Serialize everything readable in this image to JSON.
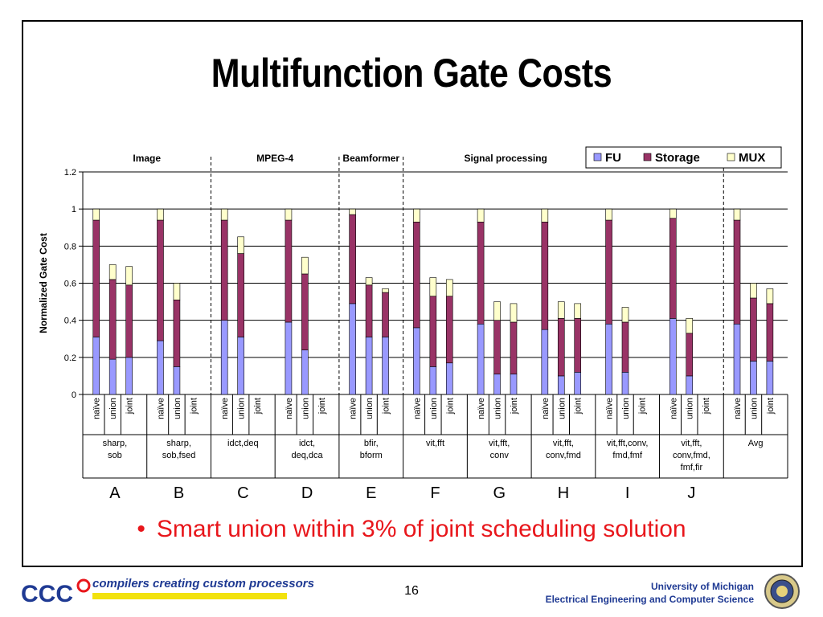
{
  "slide": {
    "title": "Multifunction Gate Costs",
    "bullet_marker": "•",
    "bullet": "Smart union within 3% of joint scheduling solution",
    "page_number": "16",
    "footer_left_logo": "CCC",
    "footer_left_text": "compilers creating custom processors",
    "footer_right_line1": "University of Michigan",
    "footer_right_line2": "Electrical Engineering and Computer Science"
  },
  "chart_data": {
    "type": "bar",
    "stacked": true,
    "ylabel": "Normalized Gate Cost",
    "ylim": [
      0,
      1.2
    ],
    "yticks": [
      "0",
      "0.2",
      "0.4",
      "0.6",
      "0.8",
      "1",
      "1.2"
    ],
    "grid": true,
    "legend_position": "top-right",
    "section_labels": [
      "Image",
      "MPEG-4",
      "Beamformer",
      "Signal processing"
    ],
    "colors": {
      "FU": "#9999ff",
      "Storage": "#993366",
      "MUX": "#ffffcc"
    },
    "series_names": [
      "FU",
      "Storage",
      "MUX"
    ],
    "groups": [
      {
        "letter": "A",
        "benchmark": [
          "sharp,",
          "sob"
        ],
        "bars": [
          {
            "label": "naïve",
            "FU": 0.31,
            "Storage": 0.63,
            "MUX": 0.06
          },
          {
            "label": "union",
            "FU": 0.19,
            "Storage": 0.43,
            "MUX": 0.08
          },
          {
            "label": "joint",
            "FU": 0.2,
            "Storage": 0.39,
            "MUX": 0.1
          }
        ]
      },
      {
        "letter": "B",
        "benchmark": [
          "sharp,",
          "sob,fsed"
        ],
        "bars": [
          {
            "label": "naïve",
            "FU": 0.29,
            "Storage": 0.65,
            "MUX": 0.06
          },
          {
            "label": "union",
            "FU": 0.15,
            "Storage": 0.36,
            "MUX": 0.09
          },
          {
            "label": "joint",
            "FU": 0,
            "Storage": 0,
            "MUX": 0
          }
        ]
      },
      {
        "letter": "C",
        "benchmark": [
          "idct,deq"
        ],
        "bars": [
          {
            "label": "naïve",
            "FU": 0.4,
            "Storage": 0.54,
            "MUX": 0.06
          },
          {
            "label": "union",
            "FU": 0.31,
            "Storage": 0.45,
            "MUX": 0.09
          },
          {
            "label": "joint",
            "FU": 0,
            "Storage": 0,
            "MUX": 0
          }
        ]
      },
      {
        "letter": "D",
        "benchmark": [
          "idct,",
          "deq,dca"
        ],
        "bars": [
          {
            "label": "naïve",
            "FU": 0.39,
            "Storage": 0.55,
            "MUX": 0.06
          },
          {
            "label": "union",
            "FU": 0.24,
            "Storage": 0.41,
            "MUX": 0.09
          },
          {
            "label": "joint",
            "FU": 0,
            "Storage": 0,
            "MUX": 0
          }
        ]
      },
      {
        "letter": "E",
        "benchmark": [
          "bfir,",
          "bform"
        ],
        "bars": [
          {
            "label": "naïve",
            "FU": 0.49,
            "Storage": 0.48,
            "MUX": 0.03
          },
          {
            "label": "union",
            "FU": 0.31,
            "Storage": 0.28,
            "MUX": 0.04
          },
          {
            "label": "joint",
            "FU": 0.31,
            "Storage": 0.24,
            "MUX": 0.02
          }
        ]
      },
      {
        "letter": "F",
        "benchmark": [
          "vit,fft"
        ],
        "bars": [
          {
            "label": "naïve",
            "FU": 0.36,
            "Storage": 0.57,
            "MUX": 0.07
          },
          {
            "label": "union",
            "FU": 0.15,
            "Storage": 0.38,
            "MUX": 0.1
          },
          {
            "label": "joint",
            "FU": 0.17,
            "Storage": 0.36,
            "MUX": 0.09
          }
        ]
      },
      {
        "letter": "G",
        "benchmark": [
          "vit,fft,",
          "conv"
        ],
        "bars": [
          {
            "label": "naïve",
            "FU": 0.38,
            "Storage": 0.55,
            "MUX": 0.07
          },
          {
            "label": "union",
            "FU": 0.11,
            "Storage": 0.29,
            "MUX": 0.1
          },
          {
            "label": "joint",
            "FU": 0.11,
            "Storage": 0.28,
            "MUX": 0.1
          }
        ]
      },
      {
        "letter": "H",
        "benchmark": [
          "vit,fft,",
          "conv,fmd"
        ],
        "bars": [
          {
            "label": "naïve",
            "FU": 0.35,
            "Storage": 0.58,
            "MUX": 0.07
          },
          {
            "label": "union",
            "FU": 0.1,
            "Storage": 0.31,
            "MUX": 0.09
          },
          {
            "label": "joint",
            "FU": 0.12,
            "Storage": 0.29,
            "MUX": 0.08
          }
        ]
      },
      {
        "letter": "I",
        "benchmark": [
          "vit,fft,conv,",
          "fmd,fmf"
        ],
        "bars": [
          {
            "label": "naïve",
            "FU": 0.38,
            "Storage": 0.56,
            "MUX": 0.06
          },
          {
            "label": "union",
            "FU": 0.12,
            "Storage": 0.27,
            "MUX": 0.08
          },
          {
            "label": "joint",
            "FU": 0,
            "Storage": 0,
            "MUX": 0
          }
        ]
      },
      {
        "letter": "J",
        "benchmark": [
          "vit,fft,",
          "conv,fmd,",
          "fmf,fir"
        ],
        "bars": [
          {
            "label": "naïve",
            "FU": 0.41,
            "Storage": 0.54,
            "MUX": 0.05
          },
          {
            "label": "union",
            "FU": 0.1,
            "Storage": 0.23,
            "MUX": 0.08
          },
          {
            "label": "joint",
            "FU": 0,
            "Storage": 0,
            "MUX": 0
          }
        ]
      },
      {
        "letter": "",
        "benchmark": [
          "Avg"
        ],
        "bars": [
          {
            "label": "naïve",
            "FU": 0.38,
            "Storage": 0.56,
            "MUX": 0.06
          },
          {
            "label": "union",
            "FU": 0.18,
            "Storage": 0.34,
            "MUX": 0.08
          },
          {
            "label": "joint",
            "FU": 0.18,
            "Storage": 0.31,
            "MUX": 0.08
          }
        ]
      }
    ]
  }
}
